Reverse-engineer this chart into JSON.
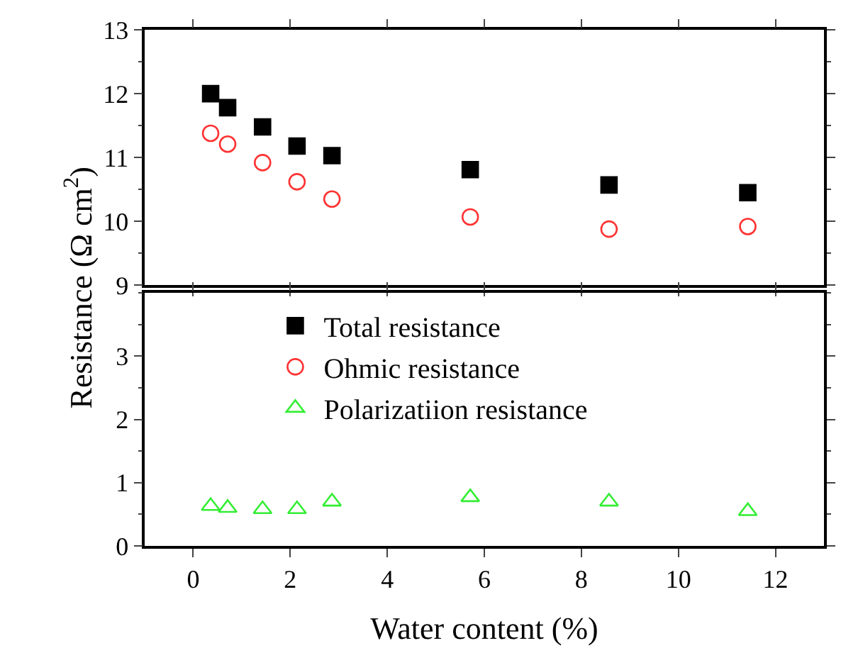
{
  "chart_data": [
    {
      "type": "scatter",
      "ylabel": "Resistance (Ω cm$^{2}$)",
      "xlim": [
        -1,
        13
      ],
      "ylim": [
        9,
        13
      ],
      "yticks": [
        9,
        10,
        11,
        12,
        13
      ],
      "tick_labels": "y",
      "grid": false,
      "legend": "left",
      "x": [
        0.36,
        0.71,
        1.43,
        2.14,
        2.86,
        5.71,
        8.57,
        11.43
      ],
      "series": [
        {
          "name": "Total resistance",
          "color": "#000000",
          "marker": "square",
          "values": [
            12.0,
            11.78,
            11.48,
            11.18,
            11.03,
            10.81,
            10.57,
            10.45
          ]
        },
        {
          "name": "Ohmic resistance",
          "color": "#ff3333",
          "marker": "circle",
          "values": [
            11.38,
            11.21,
            10.92,
            10.62,
            10.35,
            10.07,
            9.88,
            9.92
          ]
        }
      ]
    },
    {
      "type": "scatter",
      "xlabel": "Water content (%)",
      "xlim": [
        -1,
        13
      ],
      "xticks": [
        0,
        2,
        4,
        6,
        8,
        10,
        12
      ],
      "ylim": [
        0,
        4
      ],
      "yticks": [
        0,
        1,
        2,
        3
      ],
      "grid": false,
      "legend": "left",
      "x": [
        0.36,
        0.71,
        1.43,
        2.14,
        2.86,
        5.71,
        8.57,
        11.43
      ],
      "series": [
        {
          "name": "Polarizatiion resistance",
          "color": "#33ee33",
          "marker": "triangle",
          "values": [
            0.63,
            0.6,
            0.58,
            0.58,
            0.7,
            0.77,
            0.7,
            0.55
          ]
        }
      ]
    }
  ]
}
